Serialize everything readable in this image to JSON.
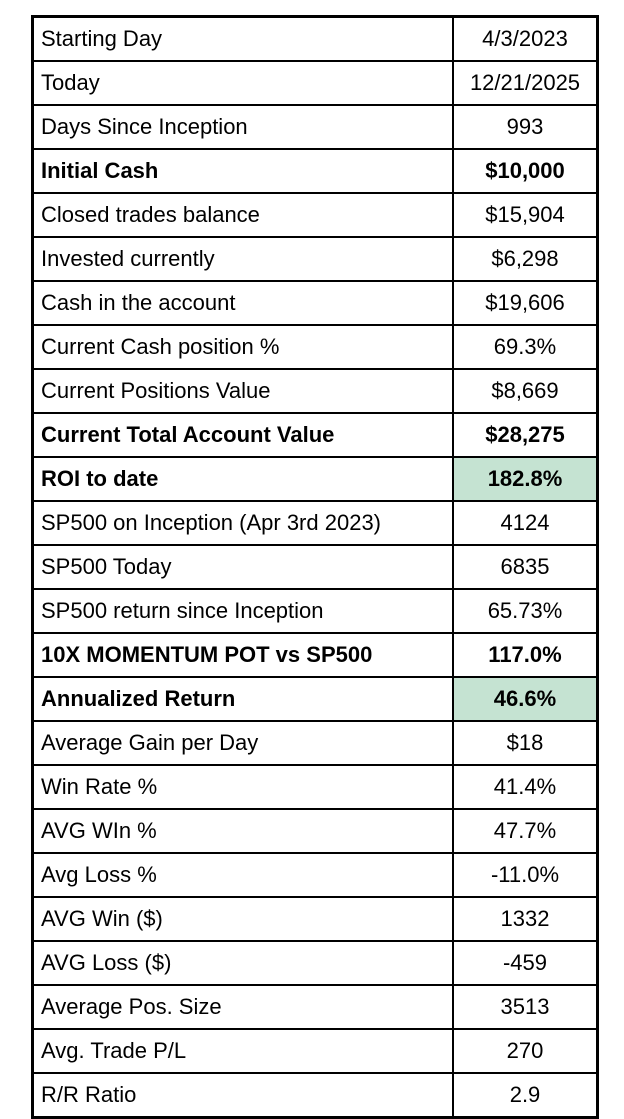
{
  "colors": {
    "background": "#ffffff",
    "border": "#000000",
    "text": "#000000",
    "highlight_green": "#c5e3d2"
  },
  "chart_data": {
    "type": "table",
    "title": "",
    "rows": [
      {
        "label": "Starting Day",
        "value": "4/3/2023",
        "bold": false,
        "highlight": false
      },
      {
        "label": "Today",
        "value": "12/21/2025",
        "bold": false,
        "highlight": false
      },
      {
        "label": "Days Since Inception",
        "value": "993",
        "bold": false,
        "highlight": false
      },
      {
        "label": "Initial Cash",
        "value": "$10,000",
        "bold": true,
        "highlight": false
      },
      {
        "label": "Closed trades balance",
        "value": "$15,904",
        "bold": false,
        "highlight": false
      },
      {
        "label": "Invested currently",
        "value": "$6,298",
        "bold": false,
        "highlight": false
      },
      {
        "label": "Cash in the account",
        "value": "$19,606",
        "bold": false,
        "highlight": false
      },
      {
        "label": "Current Cash position %",
        "value": "69.3%",
        "bold": false,
        "highlight": false
      },
      {
        "label": "Current Positions Value",
        "value": "$8,669",
        "bold": false,
        "highlight": false
      },
      {
        "label": "Current Total Account Value",
        "value": "$28,275",
        "bold": true,
        "highlight": false
      },
      {
        "label": "ROI to date",
        "value": "182.8%",
        "bold": true,
        "highlight": true
      },
      {
        "label": "SP500 on Inception (Apr 3rd 2023)",
        "value": "4124",
        "bold": false,
        "highlight": false
      },
      {
        "label": "SP500 Today",
        "value": "6835",
        "bold": false,
        "highlight": false
      },
      {
        "label": "SP500 return since Inception",
        "value": "65.73%",
        "bold": false,
        "highlight": false
      },
      {
        "label": "10X MOMENTUM POT vs SP500",
        "value": "117.0%",
        "bold": true,
        "highlight": false
      },
      {
        "label": "Annualized Return",
        "value": "46.6%",
        "bold": true,
        "highlight": true
      },
      {
        "label": "Average Gain per Day",
        "value": "$18",
        "bold": false,
        "highlight": false
      },
      {
        "label": "Win Rate %",
        "value": "41.4%",
        "bold": false,
        "highlight": false
      },
      {
        "label": "AVG WIn %",
        "value": "47.7%",
        "bold": false,
        "highlight": false
      },
      {
        "label": "Avg Loss %",
        "value": "-11.0%",
        "bold": false,
        "highlight": false
      },
      {
        "label": "AVG Win ($)",
        "value": "1332",
        "bold": false,
        "highlight": false
      },
      {
        "label": "AVG Loss ($)",
        "value": "-459",
        "bold": false,
        "highlight": false
      },
      {
        "label": "Average Pos. Size",
        "value": "3513",
        "bold": false,
        "highlight": false
      },
      {
        "label": "Avg. Trade P/L",
        "value": "270",
        "bold": false,
        "highlight": false
      },
      {
        "label": "R/R Ratio",
        "value": "2.9",
        "bold": false,
        "highlight": false
      }
    ]
  }
}
